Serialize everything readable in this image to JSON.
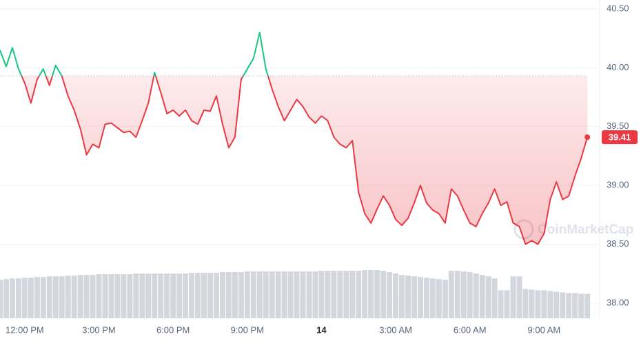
{
  "chart_data": {
    "type": "line",
    "watermark": "CoinMarketCap",
    "baseline": 39.93,
    "ylim": [
      37.9,
      40.58
    ],
    "yticks": [
      {
        "value": 38,
        "label": "38.00"
      },
      {
        "value": 38.5,
        "label": "38.50"
      },
      {
        "value": 39,
        "label": "39.00"
      },
      {
        "value": 39.5,
        "label": "39.50"
      },
      {
        "value": 40,
        "label": "40.00"
      },
      {
        "value": 40.5,
        "label": "40.50"
      }
    ],
    "xticks": [
      {
        "value": 4,
        "label": "12:00 PM"
      },
      {
        "value": 16,
        "label": "3:00 PM"
      },
      {
        "value": 28,
        "label": "6:00 PM"
      },
      {
        "value": 40,
        "label": "9:00 PM"
      },
      {
        "value": 52,
        "label": "14"
      },
      {
        "value": 64,
        "label": "3:00 AM"
      },
      {
        "value": 76,
        "label": "6:00 AM"
      },
      {
        "value": 88,
        "label": "9:00 AM"
      }
    ],
    "grid": true,
    "up_color": "#16c784",
    "down_color": "#ea3943",
    "volume_color": "#d3d6dc",
    "series": [
      {
        "name": "Price",
        "values": [
          40.15,
          40.01,
          40.17,
          39.99,
          39.87,
          39.7,
          39.9,
          39.99,
          39.85,
          40.02,
          39.93,
          39.76,
          39.64,
          39.48,
          39.26,
          39.35,
          39.32,
          39.52,
          39.53,
          39.49,
          39.45,
          39.46,
          39.41,
          39.55,
          39.7,
          39.96,
          39.79,
          39.61,
          39.64,
          39.59,
          39.64,
          39.55,
          39.52,
          39.64,
          39.63,
          39.76,
          39.52,
          39.32,
          39.41,
          39.9,
          39.99,
          40.08,
          40.3,
          39.99,
          39.82,
          39.67,
          39.55,
          39.64,
          39.73,
          39.67,
          39.58,
          39.53,
          39.59,
          39.55,
          39.41,
          39.35,
          39.32,
          39.38,
          38.94,
          38.76,
          38.68,
          38.8,
          38.91,
          38.83,
          38.71,
          38.66,
          38.72,
          38.85,
          39.0,
          38.85,
          38.79,
          38.76,
          38.68,
          38.97,
          38.91,
          38.79,
          38.68,
          38.65,
          38.76,
          38.85,
          38.97,
          38.83,
          38.86,
          38.68,
          38.65,
          38.5,
          38.53,
          38.5,
          38.59,
          38.88,
          39.03,
          38.88,
          38.91,
          39.08,
          39.23,
          39.41
        ]
      },
      {
        "name": "Volume",
        "values": [
          55,
          56,
          57,
          57,
          58,
          58,
          59,
          59,
          60,
          60,
          60,
          61,
          61,
          62,
          62,
          62,
          63,
          63,
          63,
          63,
          63,
          63,
          64,
          64,
          64,
          64,
          64,
          64,
          64,
          64,
          64,
          65,
          65,
          65,
          65,
          65,
          66,
          66,
          66,
          66,
          67,
          67,
          67,
          67,
          67,
          67,
          67,
          67,
          67,
          67,
          67,
          67,
          68,
          68,
          68,
          68,
          68,
          68,
          68,
          69,
          69,
          69,
          68,
          66,
          64,
          62,
          61,
          60,
          59,
          58,
          57,
          56,
          55,
          68,
          68,
          67,
          66,
          64,
          62,
          60,
          57,
          40,
          40,
          60,
          60,
          42,
          41,
          40,
          40,
          39,
          38,
          37,
          36,
          36,
          35,
          35
        ]
      }
    ]
  }
}
